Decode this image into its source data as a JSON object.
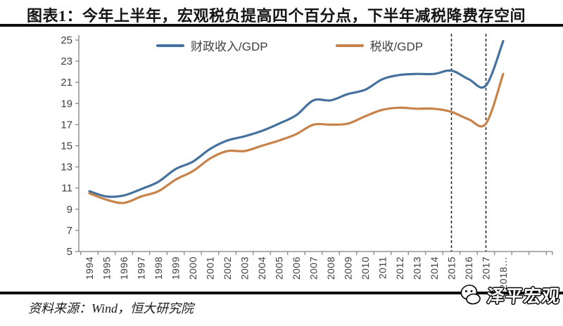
{
  "title": "图表1：今年上半年，宏观税负提高四个百分点，下半年减税降费存空间",
  "footer": {
    "source_label": "资料来源：Wind，恒大研究院"
  },
  "watermark": {
    "text": "泽平宏观",
    "icon": "face-logo-icon"
  },
  "chart_data": {
    "type": "line",
    "x": [
      1994,
      1995,
      1996,
      1997,
      1998,
      1999,
      2000,
      2001,
      2002,
      2003,
      2004,
      2005,
      2006,
      2007,
      2008,
      2009,
      2010,
      2011,
      2012,
      2013,
      2014,
      2015,
      2016,
      2017,
      2018
    ],
    "series": [
      {
        "name": "财政收入/GDP",
        "color": "#44719D",
        "values": [
          10.7,
          10.2,
          10.3,
          10.9,
          11.6,
          12.8,
          13.5,
          14.7,
          15.5,
          15.9,
          16.4,
          17.1,
          17.9,
          19.3,
          19.3,
          19.9,
          20.3,
          21.3,
          21.7,
          21.8,
          21.8,
          22.1,
          21.3,
          20.7,
          24.9
        ]
      },
      {
        "name": "税收/GDP",
        "color": "#C8834B",
        "values": [
          10.5,
          9.9,
          9.6,
          10.2,
          10.7,
          11.8,
          12.6,
          13.8,
          14.5,
          14.5,
          15.0,
          15.5,
          16.1,
          17.0,
          17.0,
          17.1,
          17.8,
          18.4,
          18.6,
          18.5,
          18.5,
          18.2,
          17.5,
          17.1,
          21.8
        ]
      }
    ],
    "ylim": [
      5,
      25
    ],
    "yticks": [
      5,
      7,
      9,
      11,
      13,
      15,
      17,
      19,
      21,
      23,
      25
    ],
    "dashed_vlines_x": [
      2015,
      2017
    ],
    "last_label_dots": "…",
    "legend_position": "top",
    "grid": false,
    "axis_color": "#7f7f7f",
    "tick_label_color": "#3f3f3f",
    "dashed_line_color": "#2f2f2f"
  }
}
